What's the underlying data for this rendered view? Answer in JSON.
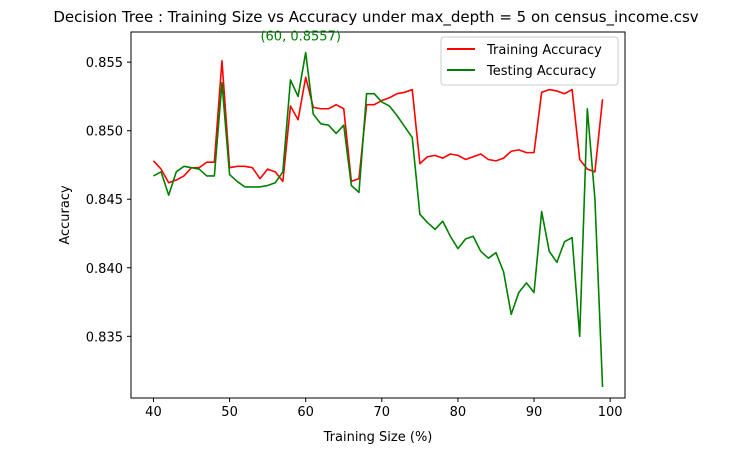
{
  "chart_data": {
    "type": "line",
    "title": "Decision Tree : Training Size vs Accuracy under max_depth = 5 on census_income.csv",
    "xlabel": "Training Size (%)",
    "ylabel": "Accuracy",
    "xlim": [
      37.05,
      101.95
    ],
    "ylim": [
      0.8305,
      0.8572
    ],
    "xticks": [
      40,
      50,
      60,
      70,
      80,
      90,
      100
    ],
    "yticks": [
      0.835,
      0.84,
      0.845,
      0.85,
      0.855
    ],
    "ytick_labels": [
      "0.835",
      "0.840",
      "0.845",
      "0.850",
      "0.855"
    ],
    "grid": false,
    "legend_position": "top-right",
    "x": [
      40,
      41,
      42,
      43,
      44,
      45,
      46,
      47,
      48,
      49,
      50,
      51,
      52,
      53,
      54,
      55,
      56,
      57,
      58,
      59,
      60,
      61,
      62,
      63,
      64,
      65,
      66,
      67,
      68,
      69,
      70,
      71,
      72,
      73,
      74,
      75,
      76,
      77,
      78,
      79,
      80,
      81,
      82,
      83,
      84,
      85,
      86,
      87,
      88,
      89,
      90,
      91,
      92,
      93,
      94,
      95,
      96,
      97,
      98,
      99
    ],
    "series": [
      {
        "name": "Training Accuracy",
        "color": "#ff0000",
        "values": [
          0.8478,
          0.8472,
          0.8462,
          0.8464,
          0.8467,
          0.8473,
          0.8473,
          0.8477,
          0.8477,
          0.8551,
          0.8473,
          0.8474,
          0.8474,
          0.8473,
          0.8465,
          0.8472,
          0.847,
          0.8463,
          0.8518,
          0.8508,
          0.8539,
          0.8517,
          0.8516,
          0.8516,
          0.8519,
          0.8516,
          0.8463,
          0.8465,
          0.8519,
          0.8519,
          0.8522,
          0.8524,
          0.8527,
          0.8528,
          0.853,
          0.8476,
          0.8481,
          0.8482,
          0.848,
          0.8483,
          0.8482,
          0.8479,
          0.8481,
          0.8483,
          0.8479,
          0.8478,
          0.848,
          0.8485,
          0.8486,
          0.8484,
          0.8484,
          0.8528,
          0.853,
          0.8529,
          0.8527,
          0.853,
          0.8479,
          0.8472,
          0.847,
          0.8523
        ]
      },
      {
        "name": "Testing Accuracy",
        "color": "#008000",
        "values": [
          0.8467,
          0.847,
          0.8453,
          0.847,
          0.8474,
          0.8473,
          0.8472,
          0.8467,
          0.8467,
          0.8535,
          0.8468,
          0.8463,
          0.8459,
          0.8459,
          0.8459,
          0.846,
          0.8462,
          0.847,
          0.8537,
          0.8525,
          0.8557,
          0.8512,
          0.8505,
          0.8504,
          0.8498,
          0.8504,
          0.846,
          0.8455,
          0.8527,
          0.8527,
          0.8521,
          0.8518,
          0.8511,
          0.8503,
          0.8495,
          0.8439,
          0.8433,
          0.8428,
          0.8434,
          0.8423,
          0.8414,
          0.8421,
          0.8423,
          0.8412,
          0.8407,
          0.8411,
          0.8397,
          0.8366,
          0.8382,
          0.8389,
          0.8382,
          0.8441,
          0.8412,
          0.8404,
          0.8419,
          0.8422,
          0.835,
          0.8516,
          0.845,
          0.8313
        ]
      }
    ],
    "annotation": {
      "text": "(60, 0.8557)",
      "x": 60,
      "y": 0.8557,
      "color": "#008000"
    }
  }
}
